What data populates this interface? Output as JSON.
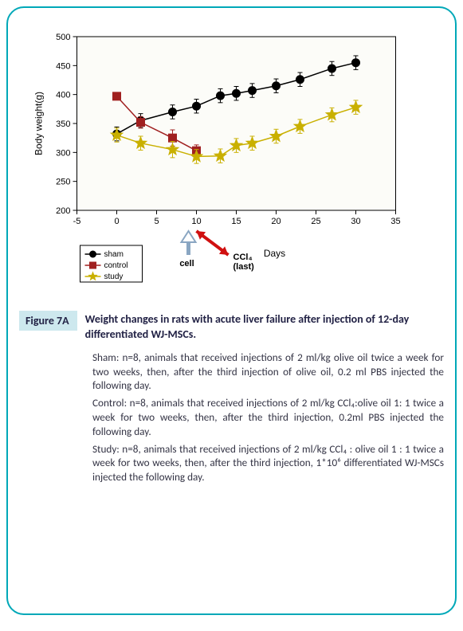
{
  "figure_label": "Figure 7A",
  "figure_title": "Weight changes in rats with acute liver failure after injection of 12-day differentiated WJ-MSCs.",
  "caption_sham": "Sham: n=8, animals that received injections of 2 ml/kg olive oil twice a week for two weeks, then, after the third injection of olive oil, 0.2 ml PBS injected the following day.",
  "caption_control": "Control: n=8, animals that received injections of 2 ml/kg CCl₄:olive oil 1: 1 twice a week for two weeks, then, after the third injection, 0.2ml PBS injected the following day.",
  "caption_study": "Study: n=8, animals that received injections of 2 ml/kg CCl₄ : olive oil 1 : 1 twice a week for two weeks, then, after the third injection, 1*10⁶ differentiated WJ-MSCs injected the following day.",
  "chart": {
    "type": "line",
    "x_label": "Days",
    "y_label": "Body weight(g)",
    "xlim": [
      -5,
      35
    ],
    "ylim": [
      200,
      500
    ],
    "xtick_step": 5,
    "ytick_step": 50,
    "background_color": "#fcfcf8",
    "frame_color": "#000000",
    "axis_font_size": 11,
    "series": {
      "sham": {
        "label": "sham",
        "color": "#000000",
        "marker": "circle",
        "marker_size": 5,
        "line_width": 1.5,
        "points": [
          {
            "x": 0,
            "y": 332,
            "err": 12
          },
          {
            "x": 3,
            "y": 355,
            "err": 12
          },
          {
            "x": 7,
            "y": 370,
            "err": 12
          },
          {
            "x": 10,
            "y": 380,
            "err": 12
          },
          {
            "x": 13,
            "y": 398,
            "err": 12
          },
          {
            "x": 15,
            "y": 402,
            "err": 12
          },
          {
            "x": 17,
            "y": 407,
            "err": 12
          },
          {
            "x": 20,
            "y": 415,
            "err": 12
          },
          {
            "x": 23,
            "y": 426,
            "err": 12
          },
          {
            "x": 27,
            "y": 445,
            "err": 12
          },
          {
            "x": 30,
            "y": 455,
            "err": 12
          }
        ]
      },
      "control": {
        "label": "control",
        "color": "#a02020",
        "marker": "square",
        "marker_size": 5,
        "line_width": 1.5,
        "points": [
          {
            "x": 0,
            "y": 397,
            "err": 0
          },
          {
            "x": 3,
            "y": 352,
            "err": 10
          },
          {
            "x": 7,
            "y": 325,
            "err": 14
          },
          {
            "x": 10,
            "y": 303,
            "err": 10
          }
        ]
      },
      "study": {
        "label": "study",
        "color": "#c9b000",
        "marker": "star",
        "marker_size": 6,
        "line_width": 1.5,
        "points": [
          {
            "x": 0,
            "y": 330,
            "err": 12
          },
          {
            "x": 3,
            "y": 316,
            "err": 12
          },
          {
            "x": 7,
            "y": 305,
            "err": 14
          },
          {
            "x": 10,
            "y": 293,
            "err": 12
          },
          {
            "x": 13,
            "y": 294,
            "err": 12
          },
          {
            "x": 15,
            "y": 312,
            "err": 12
          },
          {
            "x": 17,
            "y": 316,
            "err": 12
          },
          {
            "x": 20,
            "y": 328,
            "err": 12
          },
          {
            "x": 23,
            "y": 345,
            "err": 12
          },
          {
            "x": 27,
            "y": 365,
            "err": 12
          },
          {
            "x": 30,
            "y": 378,
            "err": 12
          }
        ]
      }
    },
    "annotations": {
      "cell_arrow": {
        "x": 9,
        "label": "cell",
        "color": "#8aa6c2"
      },
      "ccl4_arrow": {
        "x_from": 10,
        "x_to": 14,
        "label_line1": "CCl₄",
        "label_line2": "(last)",
        "color": "#d01010"
      }
    }
  }
}
